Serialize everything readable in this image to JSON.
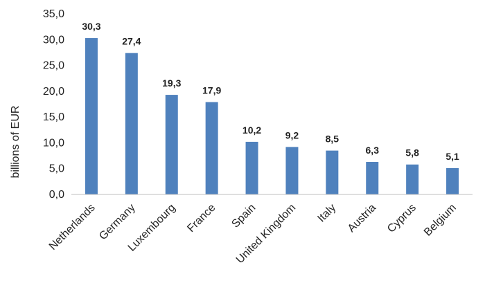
{
  "chart_data": {
    "type": "bar",
    "title": "",
    "xlabel": "",
    "ylabel": "billions of EUR",
    "categories": [
      "Netherlands",
      "Germany",
      "Luxembourg",
      "France",
      "Spain",
      "United Kingdom",
      "Italy",
      "Austria",
      "Cyprus",
      "Belgium"
    ],
    "values": [
      30.3,
      27.4,
      19.3,
      17.9,
      10.2,
      9.2,
      8.5,
      6.3,
      5.8,
      5.1
    ],
    "data_labels": [
      "30,3",
      "27,4",
      "19,3",
      "17,9",
      "10,2",
      "9,2",
      "8,5",
      "6,3",
      "5,8",
      "5,1"
    ],
    "ylim": [
      0,
      35
    ],
    "yticks": [
      0,
      5,
      10,
      15,
      20,
      25,
      30,
      35
    ],
    "ytick_labels": [
      "0,0",
      "5,0",
      "10,0",
      "15,0",
      "20,0",
      "25,0",
      "30,0",
      "35,0"
    ],
    "grid": false,
    "legend": "none",
    "bar_color": "#4F81BD",
    "axis_color": "#BFBFBF"
  }
}
